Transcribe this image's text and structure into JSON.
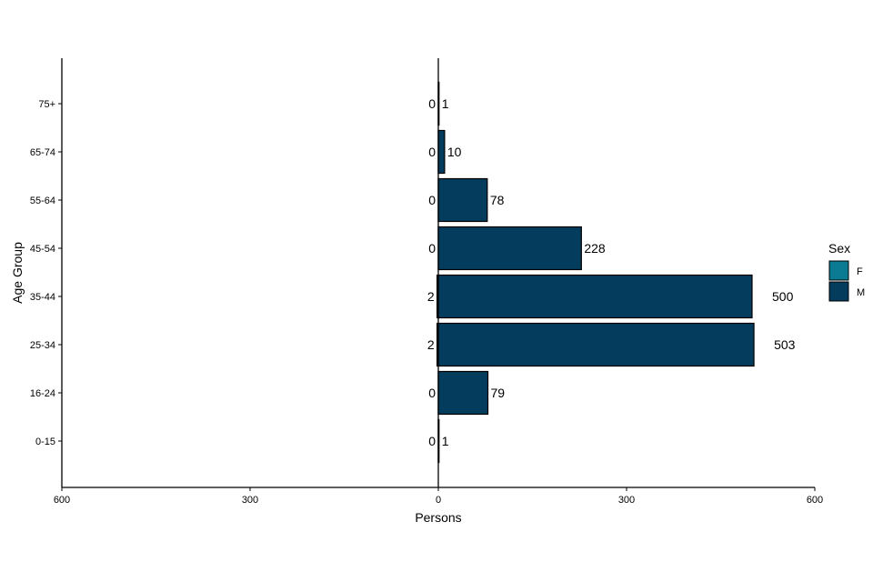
{
  "chart_data": {
    "type": "bar",
    "orientation": "horizontal-pyramid",
    "categories": [
      "0-15",
      "16-24",
      "25-34",
      "35-44",
      "45-54",
      "55-64",
      "65-74",
      "75+"
    ],
    "series": [
      {
        "name": "F",
        "values": [
          0,
          0,
          2,
          2,
          0,
          0,
          0,
          0
        ],
        "color": "#0b7b93",
        "side": "left"
      },
      {
        "name": "M",
        "values": [
          1,
          79,
          503,
          500,
          228,
          78,
          10,
          1
        ],
        "color": "#033c5c",
        "side": "right"
      }
    ],
    "xlabel": "Persons",
    "ylabel": "Age Group",
    "xlim": [
      -600,
      600
    ],
    "xticks": [
      -600,
      -300,
      0,
      300,
      600
    ],
    "xtick_labels": [
      "600",
      "300",
      "0",
      "300",
      "600"
    ],
    "grid": false,
    "legend": {
      "title": "Sex",
      "entries": [
        "F",
        "M"
      ],
      "placement": "right"
    }
  }
}
